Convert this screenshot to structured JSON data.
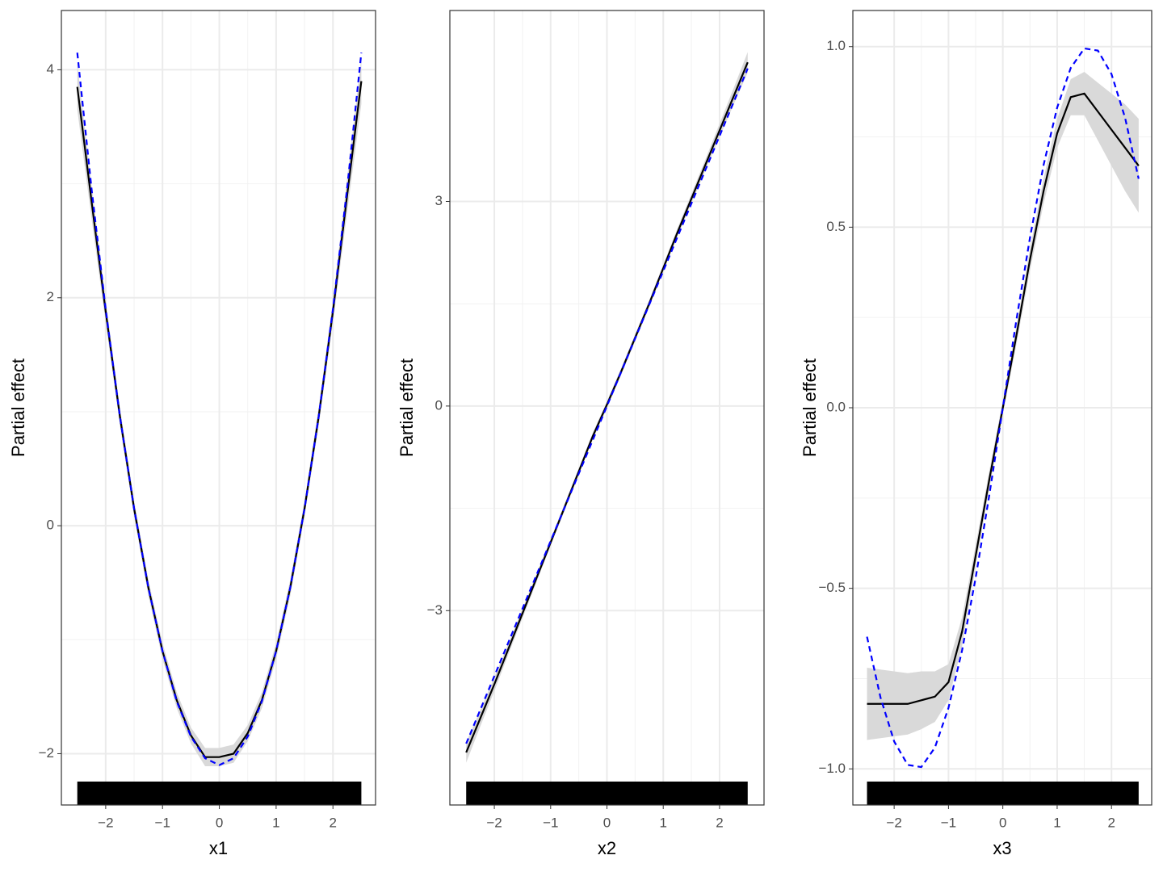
{
  "chart_data": [
    {
      "type": "line",
      "x_label": "x1",
      "y_label": "Partial effect",
      "x": [
        -2.5,
        -2.25,
        -2,
        -1.75,
        -1.5,
        -1.25,
        -1,
        -0.75,
        -0.5,
        -0.25,
        0,
        0.25,
        0.5,
        0.75,
        1,
        1.25,
        1.5,
        1.75,
        2,
        2.25,
        2.5
      ],
      "series": [
        {
          "color": "#000000",
          "dashed": false,
          "values": [
            3.85,
            2.85,
            1.88,
            0.96,
            0.15,
            -0.54,
            -1.1,
            -1.53,
            -1.84,
            -2.03,
            -2.03,
            -2.0,
            -1.82,
            -1.53,
            -1.1,
            -0.54,
            0.15,
            0.96,
            1.88,
            2.9,
            3.9
          ]
        },
        {
          "color": "#0000ff",
          "dashed": true,
          "values": [
            4.15,
            2.96,
            1.9,
            0.96,
            0.15,
            -0.54,
            -1.1,
            -1.54,
            -1.85,
            -2.04,
            -2.1,
            -2.04,
            -1.85,
            -1.54,
            -1.1,
            -0.54,
            0.15,
            0.96,
            1.9,
            2.96,
            4.15
          ]
        }
      ],
      "band": {
        "color": "#d9d9d9",
        "lower": [
          3.65,
          2.7,
          1.78,
          0.88,
          0.08,
          -0.61,
          -1.17,
          -1.6,
          -1.91,
          -2.11,
          -2.11,
          -2.08,
          -1.89,
          -1.6,
          -1.17,
          -0.61,
          0.08,
          0.88,
          1.78,
          2.75,
          3.7
        ],
        "upper": [
          4.05,
          3.0,
          1.98,
          1.04,
          0.22,
          -0.47,
          -1.03,
          -1.46,
          -1.77,
          -1.95,
          -1.95,
          -1.92,
          -1.75,
          -1.46,
          -1.03,
          -0.47,
          0.22,
          1.04,
          1.98,
          3.05,
          4.1
        ]
      },
      "xlim": [
        -2.78,
        2.75
      ],
      "ylim": [
        -2.45,
        4.52
      ],
      "xticks": [
        {
          "value": -2,
          "label": "−2"
        },
        {
          "value": -1,
          "label": "−1"
        },
        0,
        1,
        2
      ],
      "yticks": [
        {
          "value": -2,
          "label": "−2"
        },
        0,
        2,
        4
      ],
      "grid": true
    },
    {
      "type": "line",
      "x_label": "x2",
      "y_label": "Partial effect",
      "x": [
        -2.5,
        -2.25,
        -2,
        -1.75,
        -1.5,
        -1.25,
        -1,
        -0.75,
        -0.5,
        -0.25,
        0,
        0.25,
        0.5,
        0.75,
        1,
        1.25,
        1.5,
        1.75,
        2,
        2.25,
        2.5
      ],
      "series": [
        {
          "color": "#000000",
          "dashed": false,
          "values": [
            -5.08,
            -4.58,
            -4.08,
            -3.56,
            -3.04,
            -2.52,
            -2.0,
            -1.48,
            -0.96,
            -0.44,
            0.02,
            0.5,
            1.0,
            1.5,
            2.02,
            2.54,
            3.04,
            3.54,
            4.04,
            4.54,
            5.04
          ]
        },
        {
          "color": "#0000ff",
          "dashed": true,
          "values": [
            -4.95,
            -4.455,
            -3.96,
            -3.465,
            -2.97,
            -2.475,
            -1.98,
            -1.485,
            -0.99,
            -0.495,
            0,
            0.495,
            0.99,
            1.485,
            1.98,
            2.475,
            2.97,
            3.465,
            3.96,
            4.455,
            4.95
          ]
        }
      ],
      "band": {
        "color": "#d9d9d9",
        "lower": [
          -5.23,
          -4.7,
          -4.18,
          -3.64,
          -3.11,
          -2.58,
          -2.05,
          -1.53,
          -1.01,
          -0.49,
          -0.03,
          0.45,
          0.95,
          1.45,
          1.97,
          2.48,
          2.97,
          3.46,
          3.94,
          4.42,
          4.89
        ],
        "upper": [
          -4.93,
          -4.46,
          -3.98,
          -3.48,
          -2.97,
          -2.46,
          -1.95,
          -1.43,
          -0.91,
          -0.39,
          0.07,
          0.55,
          1.05,
          1.55,
          2.07,
          2.6,
          3.11,
          3.62,
          4.14,
          4.66,
          5.19
        ]
      },
      "xlim": [
        -2.79,
        2.79
      ],
      "ylim": [
        -5.85,
        5.8
      ],
      "xticks": [
        {
          "value": -2,
          "label": "−2"
        },
        {
          "value": -1,
          "label": "−1"
        },
        0,
        1,
        2
      ],
      "yticks": [
        {
          "value": -3,
          "label": "−3"
        },
        0,
        3
      ],
      "grid": true
    },
    {
      "type": "line",
      "x_label": "x3",
      "y_label": "Partial effect",
      "x": [
        -2.5,
        -2.25,
        -2,
        -1.75,
        -1.5,
        -1.25,
        -1,
        -0.75,
        -0.5,
        -0.25,
        0,
        0.25,
        0.5,
        0.75,
        1,
        1.25,
        1.5,
        1.75,
        2,
        2.25,
        2.5
      ],
      "series": [
        {
          "color": "#000000",
          "dashed": false,
          "values": [
            -0.82,
            -0.82,
            -0.82,
            -0.82,
            -0.81,
            -0.8,
            -0.76,
            -0.62,
            -0.41,
            -0.2,
            0.0,
            0.2,
            0.41,
            0.6,
            0.76,
            0.86,
            0.87,
            0.82,
            0.77,
            0.72,
            0.67
          ]
        },
        {
          "color": "#0000ff",
          "dashed": true,
          "values": [
            -0.634,
            -0.803,
            -0.924,
            -0.989,
            -0.995,
            -0.941,
            -0.831,
            -0.672,
            -0.471,
            -0.243,
            0,
            0.243,
            0.471,
            0.672,
            0.831,
            0.941,
            0.995,
            0.989,
            0.924,
            0.803,
            0.634
          ]
        }
      ],
      "band": {
        "color": "#d9d9d9",
        "lower": [
          -0.92,
          -0.915,
          -0.91,
          -0.905,
          -0.89,
          -0.87,
          -0.81,
          -0.66,
          -0.44,
          -0.225,
          -0.02,
          0.175,
          0.38,
          0.565,
          0.72,
          0.81,
          0.81,
          0.74,
          0.67,
          0.6,
          0.54
        ],
        "upper": [
          -0.72,
          -0.725,
          -0.73,
          -0.735,
          -0.73,
          -0.73,
          -0.71,
          -0.58,
          -0.38,
          -0.175,
          0.02,
          0.225,
          0.44,
          0.635,
          0.8,
          0.91,
          0.93,
          0.9,
          0.87,
          0.84,
          0.8
        ]
      },
      "xlim": [
        -2.76,
        2.74
      ],
      "ylim": [
        -1.1,
        1.1
      ],
      "xticks": [
        {
          "value": -2,
          "label": "−2"
        },
        {
          "value": -1,
          "label": "−1"
        },
        0,
        1,
        2
      ],
      "yticks": [
        {
          "value": -1,
          "label": "−1.0"
        },
        {
          "value": -0.5,
          "label": "−0.5"
        },
        {
          "value": 0,
          "label": "0.0"
        },
        0.5,
        {
          "value": 1,
          "label": "1.0"
        }
      ],
      "grid": true
    }
  ]
}
